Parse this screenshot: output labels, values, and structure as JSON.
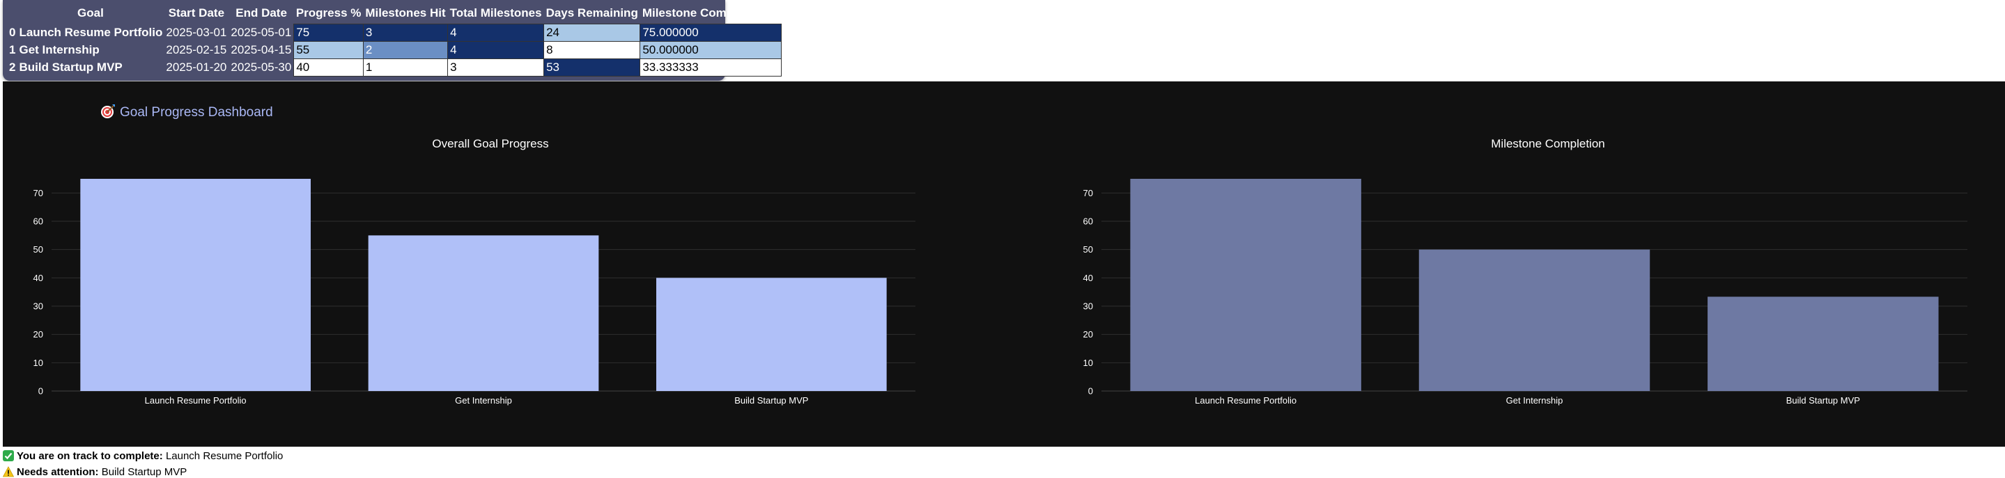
{
  "table": {
    "columns": [
      "Goal",
      "Start Date",
      "End Date",
      "Progress %",
      "Milestones Hit",
      "Total Milestones",
      "Days Remaining",
      "Milestone Completion %"
    ],
    "rows": [
      {
        "index": "0",
        "goal": "Launch Resume Portfolio",
        "start": "2025-03-01",
        "end": "2025-05-01",
        "progress": "75",
        "hit": "3",
        "total": "4",
        "days": "24",
        "completion": "75.000000"
      },
      {
        "index": "1",
        "goal": "Get Internship",
        "start": "2025-02-15",
        "end": "2025-04-15",
        "progress": "55",
        "hit": "2",
        "total": "4",
        "days": "8",
        "completion": "50.000000"
      },
      {
        "index": "2",
        "goal": "Build Startup MVP",
        "start": "2025-01-20",
        "end": "2025-05-30",
        "progress": "40",
        "hit": "1",
        "total": "3",
        "days": "53",
        "completion": "33.333333"
      }
    ],
    "colors": {
      "darkest": "#14306b",
      "dark": "#1b3a7a",
      "mid": "#6b8fc4",
      "light": "#a9c8e6",
      "white": "#ffffff"
    }
  },
  "dashboard": {
    "title": "Goal Progress Dashboard",
    "icon": "target-icon",
    "background": "#111111"
  },
  "chart_data": [
    {
      "type": "bar",
      "title": "Overall Goal Progress",
      "categories": [
        "Launch Resume Portfolio",
        "Get Internship",
        "Build Startup MVP"
      ],
      "values": [
        75,
        55,
        40
      ],
      "ylim": [
        0,
        75
      ],
      "yticks": [
        0,
        10,
        20,
        30,
        40,
        50,
        60,
        70
      ],
      "color": "#b0c0f8",
      "grid": true
    },
    {
      "type": "bar",
      "title": "Milestone Completion",
      "categories": [
        "Launch Resume Portfolio",
        "Get Internship",
        "Build Startup MVP"
      ],
      "values": [
        75,
        50,
        33.333333
      ],
      "ylim": [
        0,
        75
      ],
      "yticks": [
        0,
        10,
        20,
        30,
        40,
        50,
        60,
        70
      ],
      "color": "#6e79a3",
      "grid": true
    }
  ],
  "status": {
    "on_track_label": "You are on track to complete:",
    "on_track_value": "Launch Resume Portfolio",
    "attention_label": "Needs attention:",
    "attention_value": "Build Startup MVP"
  }
}
